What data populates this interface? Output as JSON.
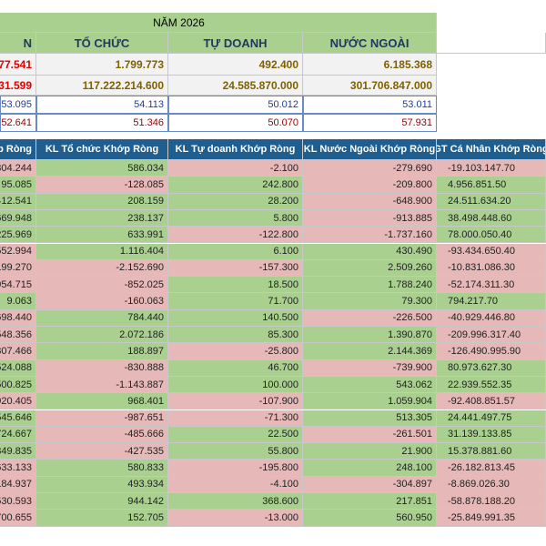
{
  "summary": {
    "title": "NĂM 2026",
    "headers": [
      "N",
      "TỔ CHỨC",
      "TỰ DOANH",
      "NƯỚC NGOÀI"
    ],
    "rows": [
      [
        "77.541",
        "1.799.773",
        "492.400",
        "6.185.368"
      ],
      [
        "31.599",
        "117.222.214.600",
        "24.585.870.000",
        "301.706.847.000"
      ],
      [
        "53.095",
        "54.113",
        "50.012",
        "53.011"
      ],
      [
        "52.641",
        "51.346",
        "50.070",
        "57.931"
      ]
    ]
  },
  "table": {
    "headers": [
      "hớp Ròng",
      "KL Tổ chức Khớp Ròng",
      "KL Tự doanh Khớp Ròng",
      "KL Nước Ngoài Khớp Ròng",
      "GT Cá Nhân Khớp Ròng"
    ],
    "rows": [
      [
        "304.244",
        "586.034",
        "-2.100",
        "-279.690",
        "-19.103.147.70"
      ],
      [
        "95.085",
        "-128.085",
        "242.800",
        "-209.800",
        "4.956.851.50"
      ],
      [
        "412.541",
        "208.159",
        "28.200",
        "-648.900",
        "24.511.634.20"
      ],
      [
        "669.948",
        "238.137",
        "5.800",
        "-913.885",
        "38.498.448.60"
      ],
      [
        "225.969",
        "633.991",
        "-122.800",
        "-1.737.160",
        "78.000.050.40"
      ],
      [
        "552.994",
        "1.116.404",
        "6.100",
        "430.490",
        "-93.434.650.40"
      ],
      [
        "199.270",
        "-2.152.690",
        "-157.300",
        "2.509.260",
        "-10.831.086.30"
      ],
      [
        "954.715",
        "-852.025",
        "18.500",
        "1.788.240",
        "-52.174.311.30"
      ],
      [
        "9.063",
        "-160.063",
        "71.700",
        "79.300",
        "794.217.70"
      ],
      [
        "698.440",
        "784.440",
        "140.500",
        "-226.500",
        "-40.929.446.80"
      ],
      [
        "548.356",
        "2.072.186",
        "85.300",
        "1.390.870",
        "-209.996.317.40"
      ],
      [
        "307.466",
        "188.897",
        "-25.800",
        "2.144.369",
        "-126.490.995.90"
      ],
      [
        "524.088",
        "-830.888",
        "46.700",
        "-739.900",
        "80.973.627.30"
      ],
      [
        "500.825",
        "-1.143.887",
        "100.000",
        "543.062",
        "22.939.552.35"
      ],
      [
        "920.405",
        "968.401",
        "-107.900",
        "1.059.904",
        "-92.408.851.57"
      ],
      [
        "545.646",
        "-987.651",
        "-71.300",
        "513.305",
        "24.441.497.75"
      ],
      [
        "724.667",
        "-485.666",
        "22.500",
        "-261.501",
        "31.139.133.85"
      ],
      [
        "349.835",
        "-427.535",
        "55.800",
        "21.900",
        "15.378.881.60"
      ],
      [
        "633.133",
        "580.833",
        "-195.800",
        "248.100",
        "-26.182.813.45"
      ],
      [
        "184.937",
        "493.934",
        "-4.100",
        "-304.897",
        "-8.869.026.30"
      ],
      [
        "530.593",
        "944.142",
        "368.600",
        "217.851",
        "-58.878.188.20"
      ],
      [
        "700.655",
        "152.705",
        "-13.000",
        "560.950",
        "-25.849.991.35"
      ]
    ]
  },
  "colors": {
    "positive": "#a9d08e",
    "negative": "#e6b8b7",
    "header": "#1f5e8e"
  }
}
